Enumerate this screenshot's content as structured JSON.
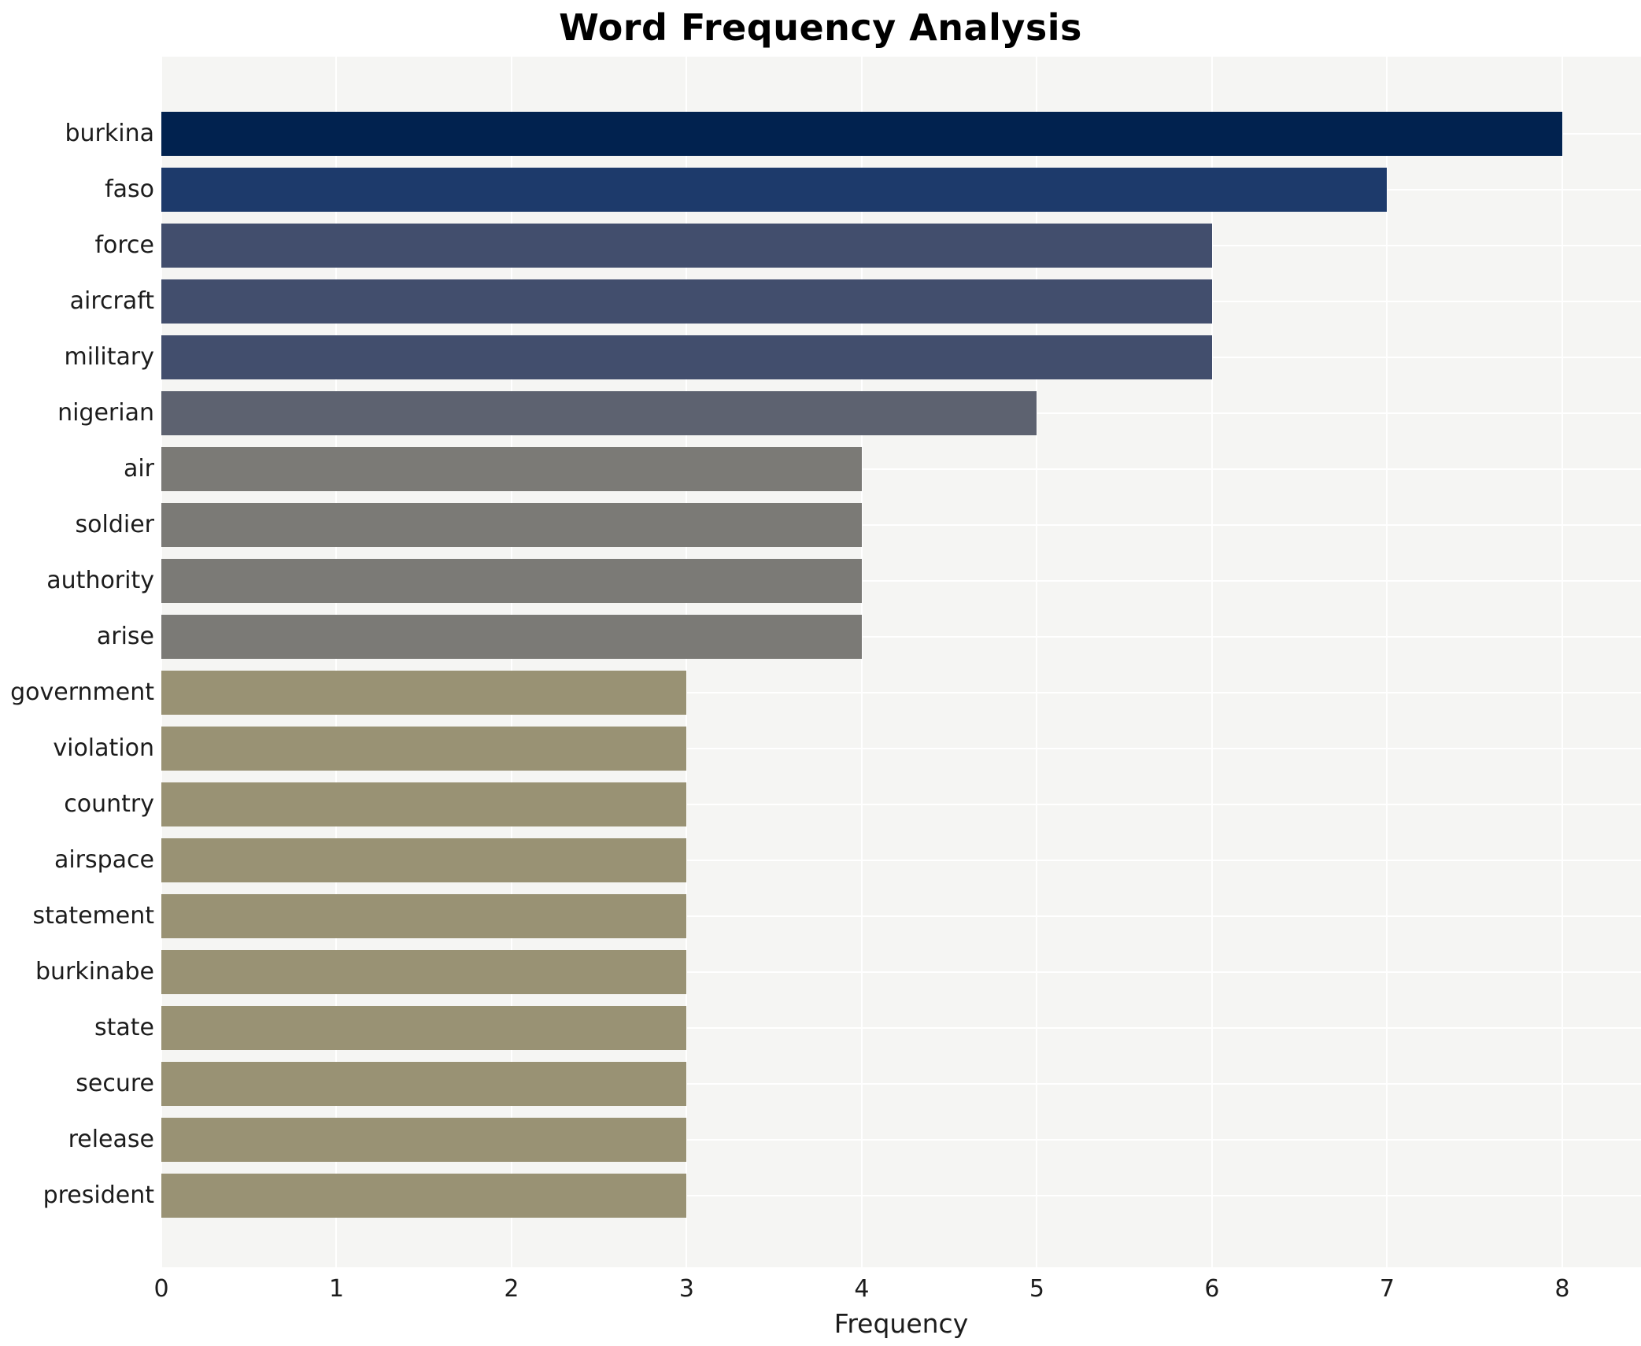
{
  "chart_data": {
    "type": "bar",
    "orientation": "horizontal",
    "title": "Word Frequency Analysis",
    "xlabel": "Frequency",
    "ylabel": "",
    "categories": [
      "burkina",
      "faso",
      "force",
      "aircraft",
      "military",
      "nigerian",
      "air",
      "soldier",
      "authority",
      "arise",
      "government",
      "violation",
      "country",
      "airspace",
      "statement",
      "burkinabe",
      "state",
      "secure",
      "release",
      "president"
    ],
    "values": [
      8,
      7,
      6,
      6,
      6,
      5,
      4,
      4,
      4,
      4,
      3,
      3,
      3,
      3,
      3,
      3,
      3,
      3,
      3,
      3
    ],
    "xticks": [
      0,
      1,
      2,
      3,
      4,
      5,
      6,
      7,
      8
    ],
    "xlim": [
      0,
      8.45
    ],
    "grid": true,
    "legend": "none",
    "colors": {
      "figure_background": "#ffffff",
      "plot_background": "#f5f5f3",
      "gridline": "#ffffff",
      "text": "#1c1c1c",
      "title_text": "#000000",
      "bar_by_value": {
        "8": "#01224f",
        "7": "#1d3a6b",
        "6": "#424e6d",
        "5": "#5d6270",
        "4": "#7b7a76",
        "3": "#999274"
      }
    }
  }
}
